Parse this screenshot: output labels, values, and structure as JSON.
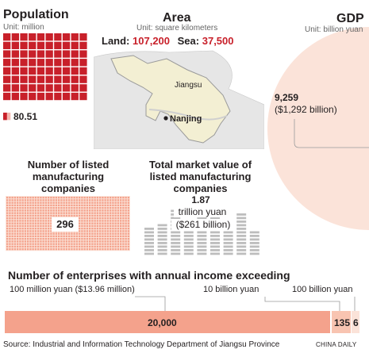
{
  "colors": {
    "accent_red": "#c8202a",
    "salmon": "#f4a28c",
    "salmon_light": "#fbe3d9",
    "map_land": "#f3efd3",
    "map_outer": "#e6e6e6",
    "bar_gray": "#bdbdbd",
    "text": "#231f20",
    "gray_text": "#666666"
  },
  "chart_data": [
    {
      "type": "waffle",
      "name": "population",
      "title": "Population",
      "unit": "Unit: million",
      "value": 80.51,
      "value_label": "80.51",
      "full_squares": 80,
      "partial_square": true
    },
    {
      "type": "map",
      "title": "Area",
      "unit": "Unit: square kilometers",
      "land_label": "Land:",
      "land_value": "107,200",
      "sea_label": "Sea:",
      "sea_value": "37,500",
      "region_label": "Jiangsu",
      "city_label": "Nanjing"
    },
    {
      "type": "pie",
      "title": "GDP",
      "unit": "Unit: billion yuan",
      "value": 9259,
      "value_label": "9,259",
      "value_usd_label": "($1,292 billion)"
    },
    {
      "type": "pictogram",
      "title_line1": "Number of listed",
      "title_line2": "manufacturing",
      "title_line3": "companies",
      "value": 296,
      "value_label": "296"
    },
    {
      "type": "pictogram",
      "title_line1": "Total market value of",
      "title_line2": "listed manufacturing",
      "title_line3": "companies",
      "value": 1.87,
      "value_label": "1.87",
      "value_unit": "trillion yuan",
      "value_usd_label": "($261 billion)"
    },
    {
      "type": "bar",
      "title": "Number of enterprises with annual income exceeding",
      "categories": [
        "100 million yuan ($13.96 million)",
        "10 billion yuan",
        "100 billion yuan"
      ],
      "values": [
        20000,
        135,
        6
      ],
      "value_labels": [
        "20,000",
        "135",
        "6"
      ]
    }
  ],
  "footer": {
    "source": "Source: Industrial and Information Technology Department of Jiangsu Province",
    "credit": "CHINA DAILY"
  }
}
